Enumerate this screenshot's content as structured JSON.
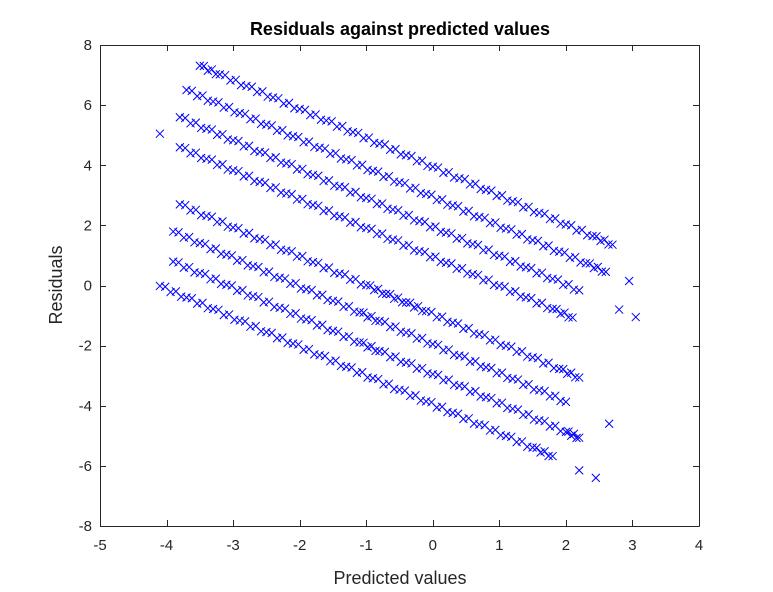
{
  "chart_data": {
    "type": "scatter",
    "title": "Residuals against predicted values",
    "xlabel": "Predicted values",
    "ylabel": "Residuals",
    "xlim": [
      -5,
      4
    ],
    "ylim": [
      -8,
      8
    ],
    "xticks": [
      "-5",
      "-4",
      "-3",
      "-2",
      "-1",
      "0",
      "1",
      "2",
      "3",
      "4"
    ],
    "yticks": [
      "-8",
      "-6",
      "-4",
      "-2",
      "0",
      "2",
      "4",
      "6",
      "8"
    ],
    "grid": false,
    "marker": "x",
    "marker_color": "#0000ff",
    "series": [
      {
        "bands": [
          {
            "x": [
              -3.5,
              -3.2,
              -2.8,
              -2.4,
              -2.0,
              -1.6,
              -1.2,
              -0.8,
              -0.4,
              0.0,
              0.4,
              0.8,
              1.2,
              1.6,
              2.0,
              2.4,
              2.7
            ],
            "y_intercept": 3.95,
            "slope": -0.96
          },
          {
            "x": [
              -3.7,
              -3.3,
              -2.9,
              -2.5,
              -2.1,
              -1.7,
              -1.3,
              -0.9,
              -0.5,
              -0.1,
              0.3,
              0.7,
              1.1,
              1.5,
              1.9,
              2.3,
              2.6
            ],
            "y_intercept": 2.95,
            "slope": -0.96
          },
          {
            "x": [
              -3.8,
              -3.4,
              -3.0,
              -2.6,
              -2.2,
              -1.8,
              -1.4,
              -1.0,
              -0.6,
              -0.2,
              0.2,
              0.6,
              1.0,
              1.4,
              1.8,
              2.2
            ],
            "y_intercept": 1.95,
            "slope": -0.96
          },
          {
            "x": [
              -3.8,
              -3.4,
              -3.0,
              -2.6,
              -2.2,
              -1.8,
              -1.4,
              -1.0,
              -0.6,
              -0.2,
              0.2,
              0.6,
              1.0,
              1.4,
              1.8,
              2.1
            ],
            "y_intercept": 0.95,
            "slope": -0.96
          },
          {
            "x": [
              -4.1
            ],
            "y": [
              5.05
            ]
          },
          {
            "x": [
              -3.8,
              -3.4,
              -3.0,
              -2.6,
              -2.2,
              -1.8,
              -1.4,
              -1.0,
              -0.7,
              -0.4,
              -0.1,
              0.3,
              0.7,
              1.1,
              1.5,
              1.9,
              2.2
            ],
            "y_intercept": -0.95,
            "slope": -0.96
          },
          {
            "x": [
              -3.9,
              -3.5,
              -3.1,
              -2.7,
              -2.3,
              -1.9,
              -1.5,
              -1.1,
              -0.8,
              -0.4,
              0.0,
              0.4,
              0.8,
              1.2,
              1.6,
              2.0
            ],
            "y_intercept": -1.95,
            "slope": -0.96
          },
          {
            "x": [
              -3.9,
              -3.5,
              -3.1,
              -2.7,
              -2.3,
              -1.9,
              -1.5,
              -1.1,
              -0.8,
              -0.4,
              0.0,
              0.4,
              0.8,
              1.2,
              1.6,
              2.0,
              2.2
            ],
            "y_intercept": -2.95,
            "slope": -0.96
          },
          {
            "x": [
              -4.1,
              -3.7,
              -3.3,
              -2.9,
              -2.5,
              -2.1,
              -1.7,
              -1.3,
              -0.9,
              -0.5,
              -0.1,
              0.3,
              0.7,
              1.1,
              1.5,
              1.8
            ],
            "y_intercept": -3.95,
            "slope": -0.96
          },
          {
            "x": [
              2.2,
              2.45,
              2.65,
              2.8,
              3.05
            ],
            "y": [
              -6.15,
              -6.4,
              -4.6,
              -0.8,
              -1.05
            ]
          },
          {
            "x": [
              2.95
            ],
            "y": [
              0.15
            ]
          }
        ]
      }
    ]
  }
}
